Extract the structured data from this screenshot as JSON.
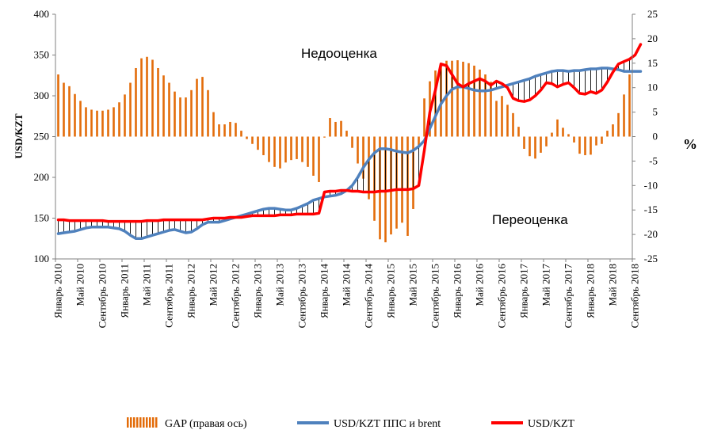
{
  "chart_data": {
    "type": "line",
    "ylabel": "USD/KZT",
    "y2label": "%",
    "ylim": [
      100,
      400
    ],
    "yticks": [
      "100",
      "150",
      "200",
      "250",
      "300",
      "350",
      "400"
    ],
    "y2lim": [
      -25,
      25
    ],
    "y2ticks": [
      "-25",
      "-20",
      "-15",
      "-10",
      "-5",
      "0",
      "5",
      "10",
      "15",
      "20",
      "25"
    ],
    "x_labels": [
      {
        "i": 0,
        "text": "Январь 2010"
      },
      {
        "i": 4,
        "text": "Май 2010"
      },
      {
        "i": 8,
        "text": "Сентябрь 2010"
      },
      {
        "i": 12,
        "text": "Январь 2011"
      },
      {
        "i": 16,
        "text": "Май 2011"
      },
      {
        "i": 20,
        "text": "Сентябрь 2011"
      },
      {
        "i": 24,
        "text": "Январь 2012"
      },
      {
        "i": 28,
        "text": "Май 2012"
      },
      {
        "i": 32,
        "text": "Сентябрь 2012"
      },
      {
        "i": 36,
        "text": "Январь 2013"
      },
      {
        "i": 40,
        "text": "Май 2013"
      },
      {
        "i": 44,
        "text": "Сентябрь 2013"
      },
      {
        "i": 48,
        "text": "Январь 2014"
      },
      {
        "i": 52,
        "text": "Май 2014"
      },
      {
        "i": 56,
        "text": "Сентябрь 2014"
      },
      {
        "i": 60,
        "text": "Январь 2015"
      },
      {
        "i": 64,
        "text": "Май 2015"
      },
      {
        "i": 68,
        "text": "Сентябрь 2015"
      },
      {
        "i": 72,
        "text": "Январь 2016"
      },
      {
        "i": 76,
        "text": "Май 2016"
      },
      {
        "i": 80,
        "text": "Сентябрь 2016"
      },
      {
        "i": 84,
        "text": "Январь 2017"
      },
      {
        "i": 88,
        "text": "Май 2017"
      },
      {
        "i": 92,
        "text": "Сентябрь 2017"
      },
      {
        "i": 96,
        "text": "Январь 2018"
      },
      {
        "i": 100,
        "text": "Май 2018"
      },
      {
        "i": 104,
        "text": "Сентябрь 2018"
      }
    ],
    "annotations": {
      "top": "Недооценка",
      "bottom": "Переоценка"
    },
    "series": [
      {
        "name": "GAP (правая ось)",
        "type": "bar",
        "axis": "right",
        "color": "#E36C0A",
        "values": [
          12.7,
          11.0,
          10.3,
          8.7,
          7.3,
          6.0,
          5.5,
          5.3,
          5.3,
          5.5,
          6.0,
          7.0,
          8.6,
          11.0,
          14.0,
          16.0,
          16.3,
          15.7,
          14.0,
          12.5,
          11.0,
          9.2,
          8.0,
          8.0,
          9.5,
          11.8,
          12.2,
          9.5,
          5.0,
          2.5,
          2.5,
          3.0,
          2.8,
          1.2,
          -0.5,
          -1.5,
          -2.7,
          -3.8,
          -5.2,
          -6.2,
          -6.5,
          -5.3,
          -4.8,
          -4.6,
          -5.2,
          -6.2,
          -8.0,
          -9.3,
          -0.2,
          3.8,
          3.0,
          3.2,
          1.2,
          -2.3,
          -5.5,
          -8.6,
          -12.8,
          -17.2,
          -21.0,
          -21.6,
          -20.0,
          -18.8,
          -17.6,
          -20.3,
          -14.8,
          -1.8,
          7.8,
          11.3,
          13.5,
          15.0,
          15.5,
          15.5,
          15.6,
          15.3,
          15.0,
          14.5,
          13.7,
          12.7,
          11.2,
          7.3,
          8.3,
          6.5,
          4.8,
          2.0,
          -2.5,
          -4.0,
          -4.5,
          -3.3,
          -2.0,
          0.8,
          3.5,
          1.8,
          0.5,
          -1.2,
          -3.5,
          -3.8,
          -3.7,
          -1.8,
          -1.5,
          1.2,
          2.5,
          4.8,
          8.6,
          12.7
        ]
      },
      {
        "name": "USD/KZT ППС и brent",
        "type": "line",
        "axis": "left",
        "color": "#4F81BD",
        "values": [
          131,
          132,
          133,
          134,
          136,
          138,
          139,
          139,
          139,
          139,
          138,
          137,
          134,
          129,
          125,
          125,
          127,
          129,
          131,
          133,
          135,
          136,
          134,
          132,
          133,
          137,
          142,
          145,
          145,
          145,
          147,
          149,
          151,
          153,
          155,
          157,
          159,
          161,
          162,
          162,
          161,
          160,
          160,
          162,
          165,
          168,
          172,
          174,
          176,
          177,
          178,
          180,
          184,
          190,
          200,
          212,
          222,
          230,
          235,
          235,
          234,
          232,
          231,
          230,
          233,
          238,
          245,
          260,
          275,
          290,
          300,
          308,
          311,
          311,
          309,
          307,
          306,
          306,
          307,
          309,
          311,
          313,
          315,
          317,
          319,
          321,
          324,
          326,
          328,
          330,
          331,
          331,
          330,
          331,
          331,
          332,
          333,
          333,
          334,
          334,
          333,
          332,
          330,
          330,
          330,
          330
        ]
      },
      {
        "name": "USD/KZT",
        "type": "line",
        "axis": "left",
        "color": "#FF0000",
        "values": [
          148,
          148,
          147,
          147,
          147,
          147,
          147,
          147,
          147,
          146,
          146,
          146,
          146,
          146,
          146,
          146,
          147,
          147,
          147,
          148,
          148,
          148,
          148,
          148,
          148,
          148,
          148,
          149,
          150,
          150,
          150,
          151,
          151,
          151,
          152,
          153,
          153,
          153,
          153,
          153,
          154,
          154,
          154,
          155,
          155,
          155,
          155,
          156,
          182,
          183,
          183,
          184,
          184,
          183,
          183,
          182,
          182,
          182,
          183,
          183,
          184,
          185,
          185,
          185,
          186,
          190,
          233,
          280,
          307,
          339,
          337,
          326,
          315,
          311,
          315,
          318,
          321,
          318,
          313,
          318,
          315,
          310,
          297,
          294,
          293,
          295,
          300,
          307,
          316,
          315,
          311,
          314,
          316,
          310,
          303,
          302,
          305,
          303,
          307,
          317,
          329,
          339,
          342,
          345,
          350,
          363
        ]
      }
    ]
  }
}
